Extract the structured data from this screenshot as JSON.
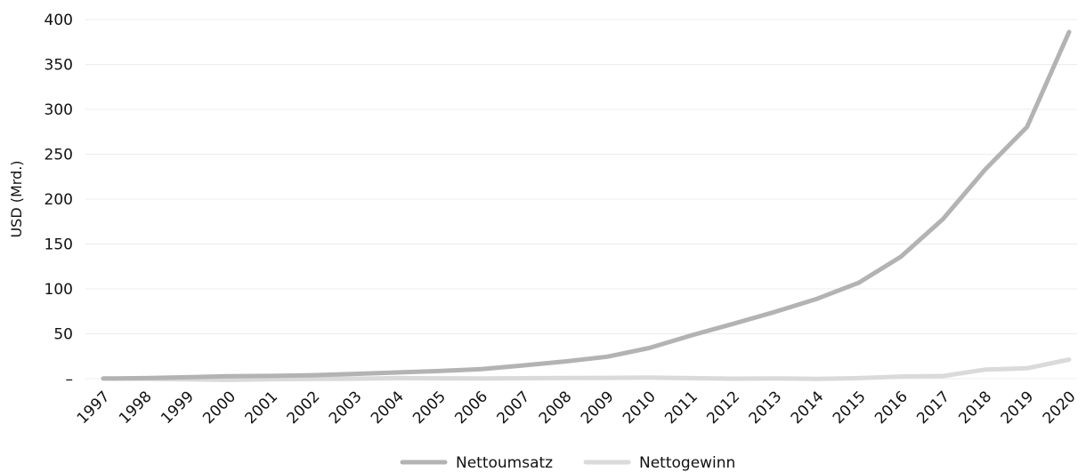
{
  "chart_data": {
    "type": "line",
    "title": "",
    "xlabel": "",
    "ylabel": "USD (Mrd.)",
    "ylim": [
      0,
      400
    ],
    "y_ticks": [
      "–",
      "50",
      "100",
      "150",
      "200",
      "250",
      "300",
      "350",
      "400"
    ],
    "y_tick_values": [
      0,
      50,
      100,
      150,
      200,
      250,
      300,
      350,
      400
    ],
    "categories": [
      "1997",
      "1998",
      "1999",
      "2000",
      "2001",
      "2002",
      "2003",
      "2004",
      "2005",
      "2006",
      "2007",
      "2008",
      "2009",
      "2010",
      "2011",
      "2012",
      "2013",
      "2014",
      "2015",
      "2016",
      "2017",
      "2018",
      "2019",
      "2020"
    ],
    "grid": true,
    "legend_position": "bottom",
    "series": [
      {
        "name": "Nettoumsatz",
        "color": "#b3b3b3",
        "values": [
          0.15,
          0.6,
          1.6,
          2.8,
          3.1,
          3.9,
          5.3,
          6.9,
          8.5,
          10.7,
          14.8,
          19.2,
          24.5,
          34.2,
          48.1,
          61.1,
          74.5,
          89.0,
          107.0,
          136.0,
          177.9,
          232.9,
          280.5,
          386.1
        ]
      },
      {
        "name": "Nettogewinn",
        "color": "#dadada",
        "values": [
          -0.03,
          -0.12,
          -0.72,
          -1.41,
          -0.57,
          -0.15,
          0.04,
          0.59,
          0.36,
          0.19,
          0.48,
          0.65,
          0.9,
          1.15,
          0.63,
          -0.04,
          0.27,
          -0.24,
          0.6,
          2.4,
          3.0,
          10.1,
          11.6,
          21.3
        ]
      }
    ]
  }
}
